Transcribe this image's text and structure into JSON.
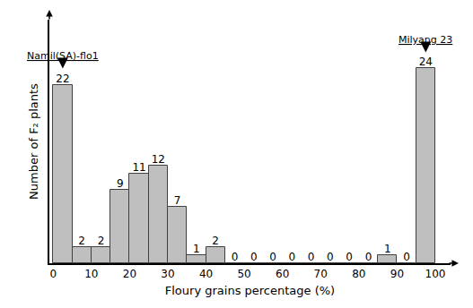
{
  "chart_data": {
    "type": "histogram",
    "x_label": "Floury grains percentage (%)",
    "y_label": "Number of F₂ plants",
    "bins": [
      0,
      5,
      10,
      15,
      20,
      25,
      30,
      35,
      40,
      45,
      50,
      55,
      60,
      65,
      70,
      75,
      80,
      85,
      90,
      95,
      100
    ],
    "values": [
      22,
      2,
      2,
      9,
      11,
      12,
      7,
      1,
      2,
      0,
      0,
      0,
      0,
      0,
      0,
      0,
      0,
      1,
      0,
      24
    ],
    "color": "#bfbfbf",
    "data_labels": true,
    "xlim": [
      -1,
      104
    ],
    "xticks": [
      0,
      10,
      20,
      30,
      40,
      50,
      60,
      70,
      80,
      90,
      100
    ],
    "ylim": [
      0,
      30
    ],
    "tick_labels": "x",
    "grid": false,
    "annotations": [
      {
        "text": "Namil(SA)-flo1",
        "x": 2.5,
        "y": 22
      },
      {
        "text": "Milyang 23",
        "x": 97.5,
        "y": 24
      }
    ]
  }
}
